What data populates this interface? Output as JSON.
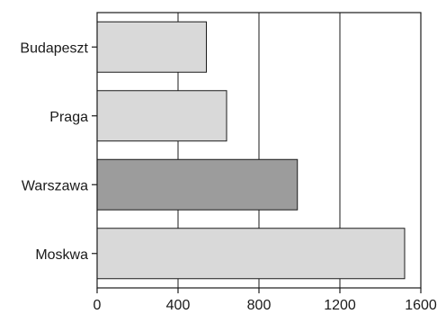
{
  "chart_data": {
    "type": "bar",
    "orientation": "horizontal",
    "categories": [
      "Budapeszt",
      "Praga",
      "Warszawa",
      "Moskwa"
    ],
    "values": [
      540,
      640,
      990,
      1520
    ],
    "bar_colors": [
      "#d9d9d9",
      "#d9d9d9",
      "#9c9c9c",
      "#d9d9d9"
    ],
    "xlim": [
      0,
      1600
    ],
    "xticks": [
      "0",
      "400",
      "800",
      "1200",
      "1600"
    ],
    "grid": "vertical",
    "title": "",
    "xlabel": "",
    "ylabel": ""
  }
}
